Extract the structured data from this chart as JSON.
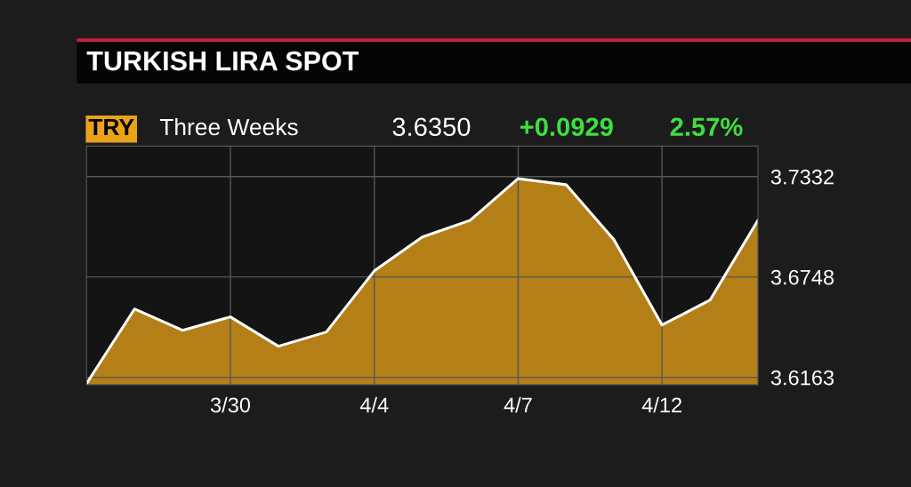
{
  "chart_data": {
    "type": "area",
    "title": "TURKISH LIRA SPOT",
    "subtitle": "Three Weeks",
    "annotations": [
      "TRY",
      "3.6350",
      "+0.0929",
      "2.57%"
    ],
    "categories": [
      null,
      null,
      null,
      "3/30",
      null,
      null,
      "4/4",
      null,
      null,
      "4/7",
      null,
      null,
      "4/12",
      null,
      null
    ],
    "series": [
      {
        "color": "#e8a317",
        "values": [
          3.6127,
          3.6561,
          3.6437,
          3.6515,
          3.6344,
          3.6427,
          3.6783,
          3.698,
          3.7078,
          3.7321,
          3.7285,
          3.6964,
          3.6468,
          3.6613,
          3.7078
        ]
      }
    ],
    "ylim": [
      3.612,
      3.751
    ],
    "yticks": [
      3.6163,
      3.6748,
      3.7332
    ],
    "grid": true
  }
}
